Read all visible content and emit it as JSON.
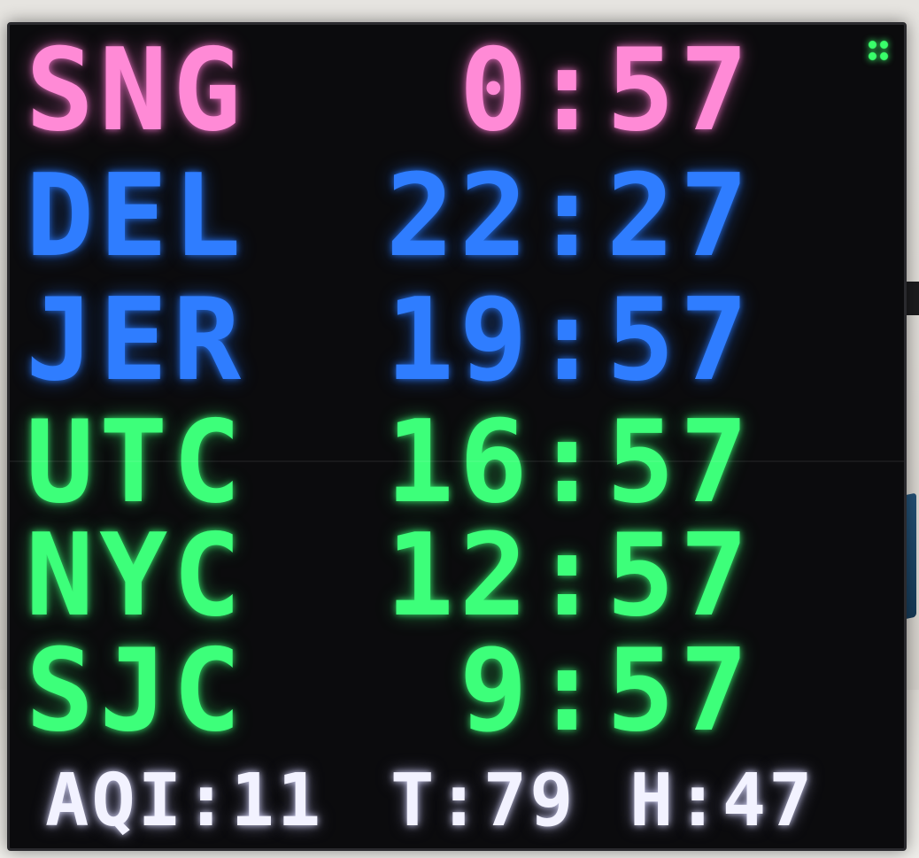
{
  "display": {
    "rows": [
      {
        "city": "SNG",
        "time": " 0:57",
        "color": "#ff8ad6"
      },
      {
        "city": "DEL",
        "time": "22:27",
        "color": "#2f7dff"
      },
      {
        "city": "JER",
        "time": "19:57",
        "color": "#2f7dff"
      },
      {
        "city": "UTC",
        "time": "16:57",
        "color": "#3dff7a"
      },
      {
        "city": "NYC",
        "time": "12:57",
        "color": "#3dff7a"
      },
      {
        "city": "SJC",
        "time": " 9:57",
        "color": "#3dff7a"
      }
    ],
    "footer": {
      "aqi": "AQI:11",
      "temperature": "T:79",
      "humidity": "H:47"
    },
    "status_indicator_color": "#39ff6a"
  }
}
